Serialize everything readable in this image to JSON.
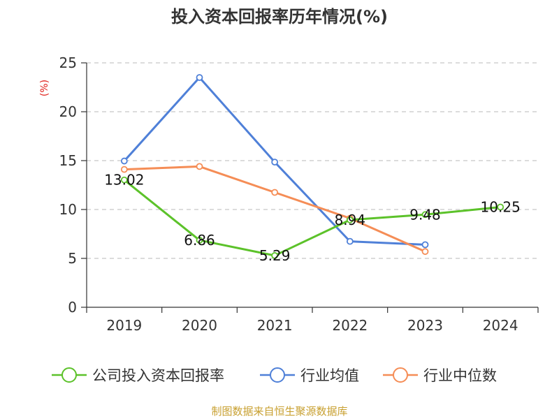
{
  "chart_data": {
    "type": "line",
    "title": "投入资本回报率历年情况(%)",
    "ylabel": "(%)",
    "xlabel": "",
    "categories": [
      "2019",
      "2020",
      "2021",
      "2022",
      "2023",
      "2024"
    ],
    "ylim": [
      0,
      25
    ],
    "yticks": [
      0,
      5,
      10,
      15,
      20,
      25
    ],
    "grid": true,
    "legend_position": "bottom",
    "series": [
      {
        "name": "公司投入资本回报率",
        "color": "#5cc22a",
        "values": [
          13.02,
          6.86,
          5.29,
          8.94,
          9.48,
          10.25
        ],
        "labels": [
          "13.02",
          "6.86",
          "5.29",
          "8.94",
          "9.48",
          "10.25"
        ]
      },
      {
        "name": "行业均值",
        "color": "#4f80d8",
        "values": [
          14.96,
          23.5,
          14.85,
          6.74,
          6.4,
          null
        ]
      },
      {
        "name": "行业中位数",
        "color": "#f58d56",
        "values": [
          14.1,
          14.4,
          11.75,
          9.1,
          5.7,
          null
        ]
      }
    ]
  },
  "source": "制图数据来自恒生聚源数据库"
}
